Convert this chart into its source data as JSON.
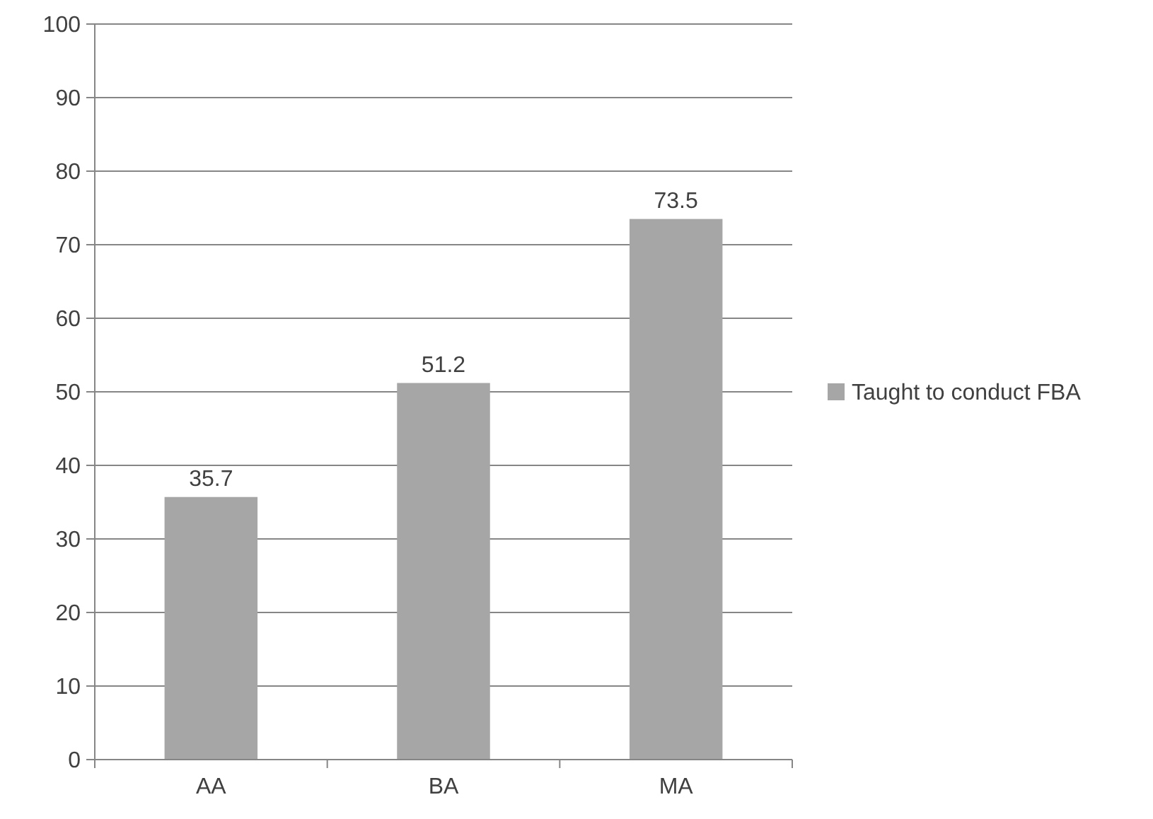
{
  "chart_data": {
    "type": "bar",
    "categories": [
      "AA",
      "BA",
      "MA"
    ],
    "series": [
      {
        "name": "Taught to conduct FBA",
        "color": "#a6a6a6",
        "values": [
          35.7,
          51.2,
          73.5
        ]
      }
    ],
    "ylim": [
      0,
      100
    ],
    "yticks": [
      0,
      10,
      20,
      30,
      40,
      50,
      60,
      70,
      80,
      90,
      100
    ],
    "grid": "y",
    "legend": "right",
    "data_labels": true
  }
}
